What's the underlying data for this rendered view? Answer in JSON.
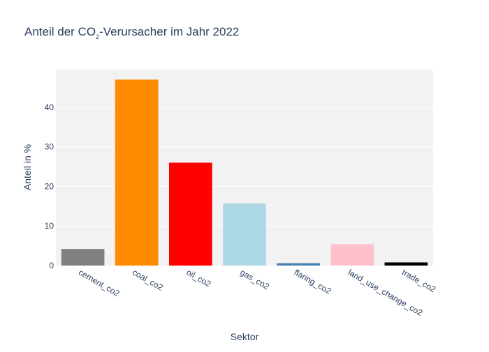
{
  "chart_data": {
    "type": "bar",
    "title": {
      "prefix": "Anteil der CO",
      "subscript": "2",
      "suffix": "-Verursacher im Jahr 2022"
    },
    "xlabel": "Sektor",
    "ylabel": "Anteil in %",
    "categories": [
      "cement_co2",
      "coal_co2",
      "oil_co2",
      "gas_co2",
      "flaring_co2",
      "land_use_change_co2",
      "trade_co2"
    ],
    "values": [
      4.2,
      47.0,
      26.0,
      15.7,
      0.6,
      5.4,
      0.8
    ],
    "colors": [
      "#808080",
      "#ff8c00",
      "#ff0000",
      "#add8e6",
      "#4682b4",
      "#ffc0cb",
      "#000000"
    ],
    "ylim": [
      0,
      49.5
    ],
    "yticks": [
      0,
      10,
      20,
      30,
      40
    ],
    "grid": true,
    "legend": "none",
    "plot_bgcolor": "#f2f2f2",
    "text_color": "#2a3f5f"
  }
}
